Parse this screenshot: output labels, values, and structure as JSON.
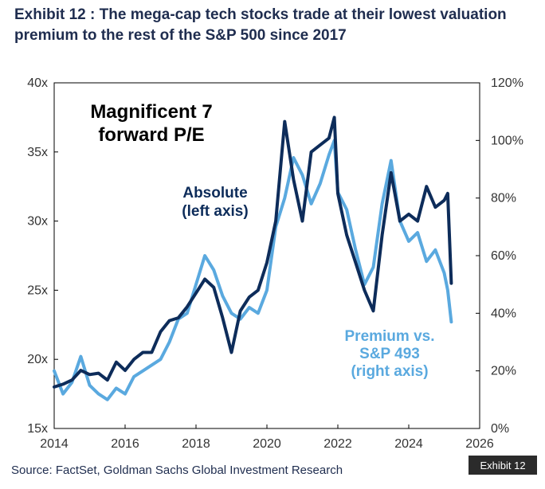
{
  "header": {
    "title": "Exhibit 12 : The mega-cap tech stocks trade at their lowest valuation premium to the rest of the S&P 500 since 2017"
  },
  "footer": {
    "source": "Source: FactSet, Goldman Sachs Global Investment Research",
    "exhibit_tag": "Exhibit 12"
  },
  "colors": {
    "absolute": "#0d2c5a",
    "premium": "#5aa9df",
    "text": "#1f2d4f",
    "panel_border": "#000000",
    "tag_bg": "#2b2b2b"
  },
  "chart_data": {
    "type": "line",
    "title": "Magnificent 7 forward P/E",
    "title_lines": [
      "Magnificent 7",
      "forward P/E"
    ],
    "x_ticks": [
      "2014",
      "2016",
      "2018",
      "2020",
      "2022",
      "2024",
      "2026"
    ],
    "xlim": [
      2014,
      2026
    ],
    "y_left": {
      "lim": [
        15,
        40
      ],
      "ticks": [
        "15x",
        "20x",
        "25x",
        "30x",
        "35x",
        "40x"
      ],
      "tick_values": [
        15,
        20,
        25,
        30,
        35,
        40
      ]
    },
    "y_right": {
      "lim": [
        0,
        120
      ],
      "ticks": [
        "0%",
        "20%",
        "40%",
        "60%",
        "80%",
        "100%",
        "120%"
      ],
      "tick_values": [
        0,
        20,
        40,
        60,
        80,
        100,
        120
      ]
    },
    "grid": false,
    "series": [
      {
        "name": "Absolute (left axis)",
        "label_lines": [
          "Absolute",
          "(left axis)"
        ],
        "axis": "left",
        "color": "#0d2c5a",
        "x": [
          2014.0,
          2014.25,
          2014.5,
          2014.75,
          2015.0,
          2015.25,
          2015.5,
          2015.75,
          2016.0,
          2016.25,
          2016.5,
          2016.75,
          2017.0,
          2017.25,
          2017.5,
          2017.75,
          2018.0,
          2018.25,
          2018.5,
          2018.75,
          2019.0,
          2019.25,
          2019.5,
          2019.75,
          2020.0,
          2020.25,
          2020.5,
          2020.75,
          2021.0,
          2021.25,
          2021.5,
          2021.75,
          2021.9,
          2022.0,
          2022.25,
          2022.5,
          2022.75,
          2023.0,
          2023.25,
          2023.5,
          2023.75,
          2024.0,
          2024.25,
          2024.5,
          2024.75,
          2025.0,
          2025.1,
          2025.2
        ],
        "y": [
          18.0,
          18.2,
          18.5,
          19.2,
          18.9,
          19.0,
          18.5,
          19.8,
          19.2,
          20.0,
          20.5,
          20.5,
          22.0,
          22.8,
          23.0,
          23.8,
          24.8,
          25.8,
          25.2,
          23.0,
          20.5,
          23.5,
          24.5,
          25.0,
          27.0,
          30.0,
          37.2,
          33.0,
          30.0,
          35.0,
          35.5,
          36.0,
          37.5,
          32.0,
          29.0,
          27.0,
          25.0,
          23.5,
          29.0,
          33.5,
          30.0,
          30.5,
          30.0,
          32.5,
          31.0,
          31.5,
          32.0,
          25.5
        ]
      },
      {
        "name": "Premium vs. S&P 493 (right axis)",
        "label_lines": [
          "Premium vs.",
          "S&P 493",
          "(right axis)"
        ],
        "axis": "right",
        "color": "#5aa9df",
        "x": [
          2014.0,
          2014.25,
          2014.5,
          2014.75,
          2015.0,
          2015.25,
          2015.5,
          2015.75,
          2016.0,
          2016.25,
          2016.5,
          2016.75,
          2017.0,
          2017.25,
          2017.5,
          2017.75,
          2018.0,
          2018.25,
          2018.5,
          2018.75,
          2019.0,
          2019.25,
          2019.5,
          2019.75,
          2020.0,
          2020.25,
          2020.5,
          2020.75,
          2021.0,
          2021.25,
          2021.5,
          2021.75,
          2021.9,
          2022.0,
          2022.25,
          2022.5,
          2022.75,
          2023.0,
          2023.25,
          2023.5,
          2023.75,
          2024.0,
          2024.25,
          2024.5,
          2024.75,
          2025.0,
          2025.1,
          2025.2
        ],
        "y": [
          20.0,
          12.0,
          16.0,
          25.0,
          15.0,
          12.0,
          10.0,
          14.0,
          12.0,
          18.0,
          20.0,
          22.0,
          24.0,
          30.0,
          38.0,
          40.0,
          50.0,
          60.0,
          55.0,
          46.0,
          40.0,
          38.0,
          42.0,
          40.0,
          48.0,
          70.0,
          80.0,
          94.0,
          88.0,
          78.0,
          85.0,
          95.0,
          100.0,
          82.0,
          76.0,
          62.0,
          50.0,
          56.0,
          78.0,
          93.0,
          72.0,
          65.0,
          68.0,
          58.0,
          62.0,
          54.0,
          48.0,
          37.0
        ]
      }
    ]
  }
}
